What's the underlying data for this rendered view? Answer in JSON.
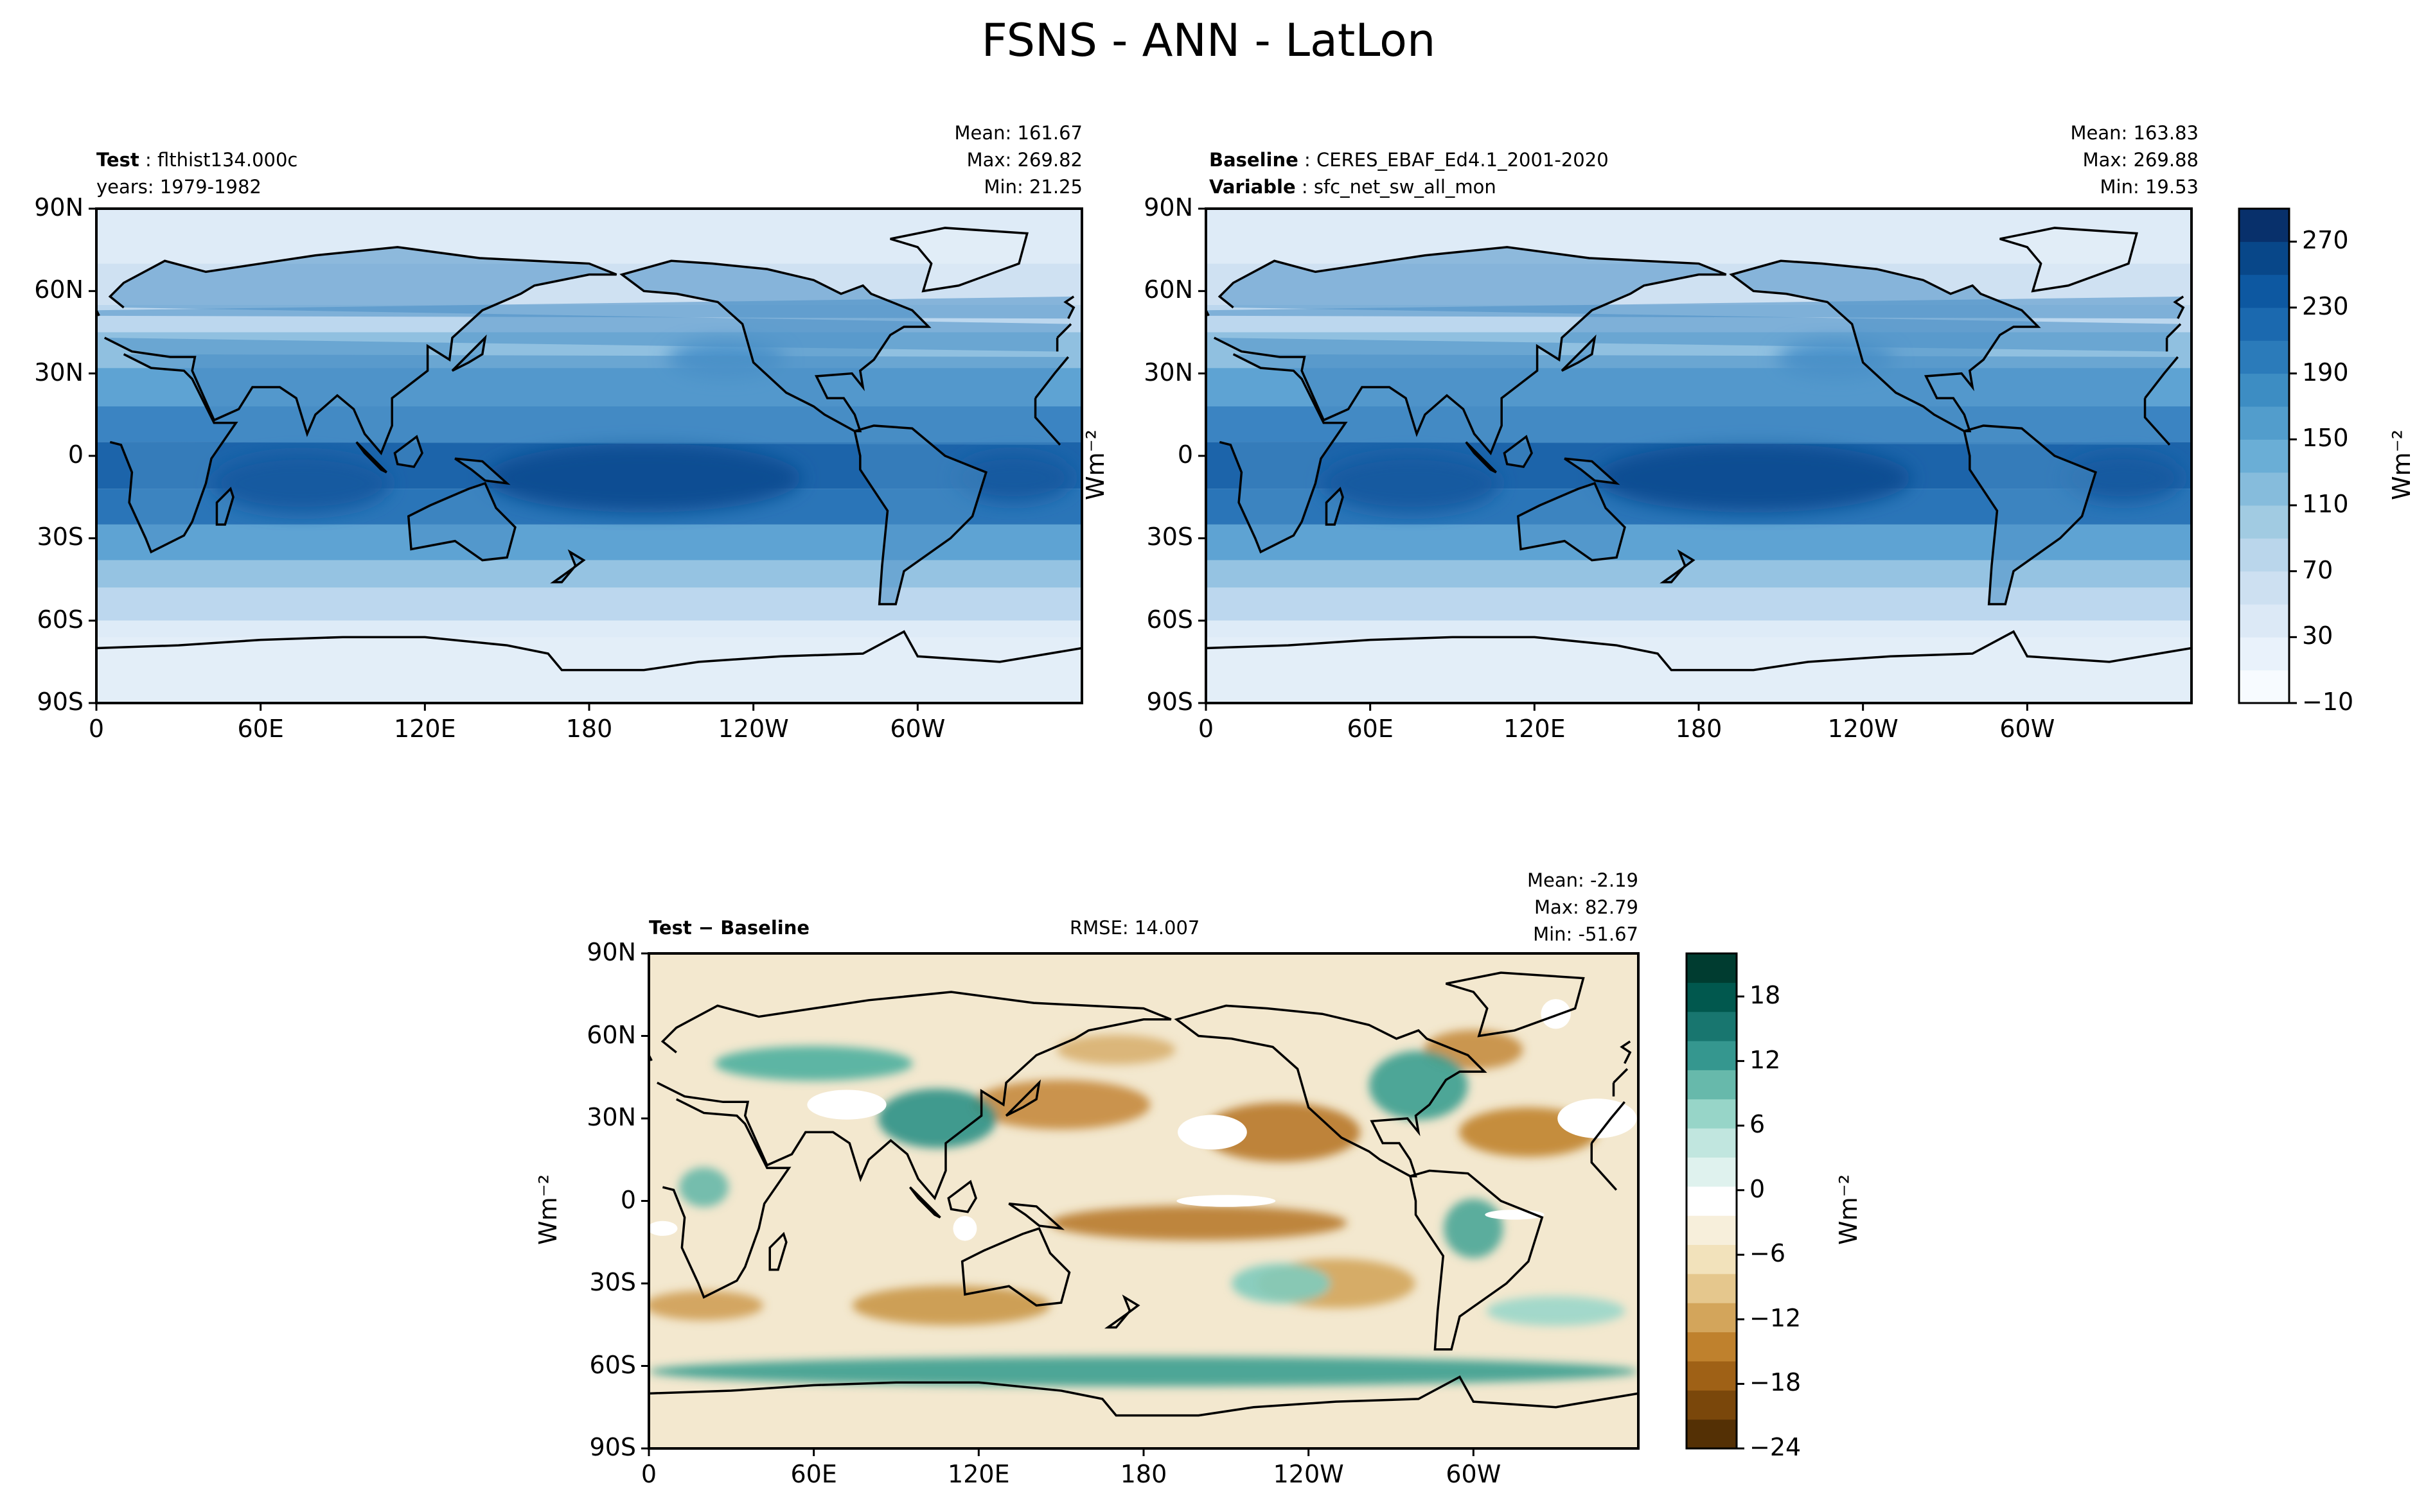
{
  "figure": {
    "title": "FSNS - ANN - LatLon"
  },
  "panels": [
    {
      "id": "test",
      "header_key": "Test",
      "header_value": "flthist134.000c",
      "header2": "years: 1979-1982",
      "mean": "Mean: 161.67",
      "max": "Max: 269.82",
      "min": "Min: 21.25"
    },
    {
      "id": "baseline",
      "header_key": "Baseline",
      "header_value": "CERES_EBAF_Ed4.1_2001-2020",
      "header2_key": "Variable",
      "header2_value": "sfc_net_sw_all_mon",
      "mean": "Mean: 163.83",
      "max": "Max: 269.88",
      "min": "Min: 19.53"
    },
    {
      "id": "diff",
      "header": "Test − Baseline",
      "rmse": "RMSE: 14.007",
      "mean": "Mean: -2.19",
      "max": "Max: 82.79",
      "min": "Min: -51.67"
    }
  ],
  "axes": {
    "xticks": [
      "0",
      "60E",
      "120E",
      "180",
      "120W",
      "60W"
    ],
    "yticks": [
      "90N",
      "60N",
      "30N",
      "0",
      "30S",
      "60S",
      "90S"
    ],
    "units_label": "Wm⁻²"
  },
  "colorbars": {
    "top": {
      "colormap": "Blues",
      "range": [
        -10,
        290
      ],
      "ticks": [
        "270",
        "230",
        "190",
        "150",
        "110",
        "70",
        "30",
        "−10"
      ],
      "label": "Wm⁻²",
      "colors": [
        "#f7fbff",
        "#e9f2fb",
        "#dce9f6",
        "#cde0f1",
        "#bad6eb",
        "#a1cbe2",
        "#86bcdc",
        "#6aaed6",
        "#529dcc",
        "#3d8dc3",
        "#2b7bba",
        "#1b69af",
        "#0d58a1",
        "#084789",
        "#08306b"
      ]
    },
    "diff": {
      "colormap": "BrBG",
      "range": [
        -24,
        22
      ],
      "ticks": [
        "18",
        "12",
        "6",
        "0",
        "−6",
        "−12",
        "−18",
        "−24"
      ],
      "label": "Wm⁻²",
      "colors": [
        "#543005",
        "#7a470b",
        "#9f6116",
        "#bf812d",
        "#d3a55b",
        "#e5c78d",
        "#f2e2bb",
        "#f7efdb",
        "#ffffff",
        "#dff2ee",
        "#c1e6df",
        "#97d5c8",
        "#67b9ab",
        "#35978f",
        "#18766f",
        "#01584e",
        "#003c30"
      ]
    }
  },
  "map_colors": {
    "top_land": "#4a8fc6",
    "top_tropic": "#1c64aa",
    "top_mid": "#5ea3d3",
    "top_high": "#bcd7ee",
    "top_polar": "#deebf7",
    "diff_brown": "#c89546",
    "diff_teal": "#3a9e90",
    "diff_neutral": "#f3e8cf"
  }
}
